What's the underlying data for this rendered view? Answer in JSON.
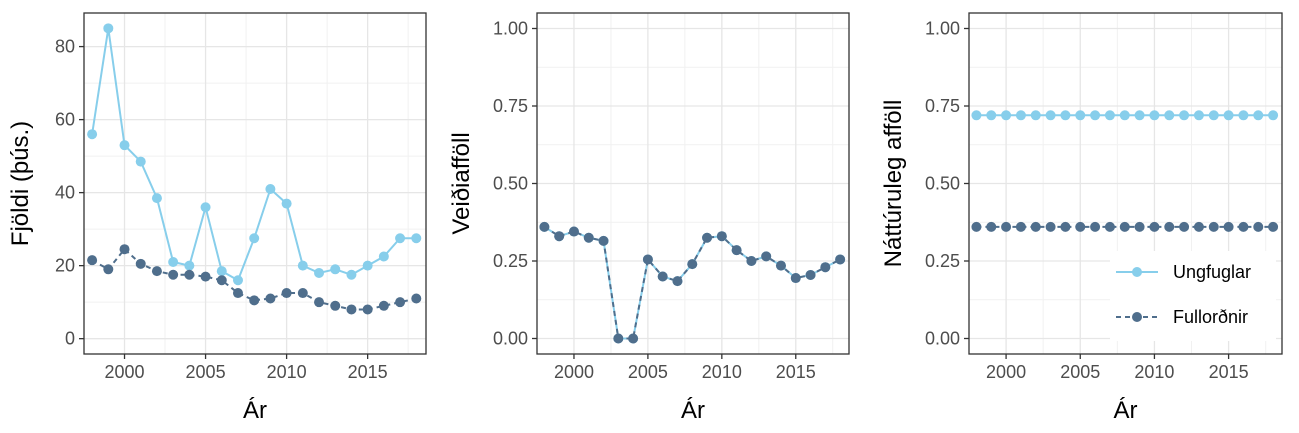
{
  "chart_data": [
    {
      "type": "line",
      "xlabel": "Ár",
      "ylabel": "Fjöldi (þús.)",
      "xlim": [
        1997.5,
        2018.6
      ],
      "ylim": [
        -4.2,
        89.2
      ],
      "x_ticks": [
        2000,
        2005,
        2010,
        2015
      ],
      "y_ticks": [
        0,
        20,
        40,
        60,
        80
      ],
      "y_tick_labels": [
        "0",
        "20",
        "40",
        "60",
        "80"
      ],
      "grid": true,
      "x": [
        1998,
        1999,
        2000,
        2001,
        2002,
        2003,
        2004,
        2005,
        2006,
        2007,
        2008,
        2009,
        2010,
        2011,
        2012,
        2013,
        2014,
        2015,
        2016,
        2017,
        2018
      ],
      "series": [
        {
          "name": "Ungfuglar",
          "color": "#87CEEB",
          "dashed": false,
          "values": [
            56,
            85,
            53,
            48.5,
            38.5,
            21,
            20,
            36,
            18.5,
            16,
            27.5,
            41,
            37,
            20,
            18,
            19,
            17.5,
            20,
            22.5,
            27.5,
            27.5
          ]
        },
        {
          "name": "Fullorðnir",
          "color": "#4F6E8C",
          "dashed": true,
          "values": [
            21.5,
            19,
            24.5,
            20.5,
            18.5,
            17.5,
            17.5,
            17,
            16,
            12.5,
            10.5,
            11,
            12.5,
            12.5,
            10,
            9,
            8,
            8,
            9,
            10,
            11
          ]
        }
      ]
    },
    {
      "type": "line",
      "xlabel": "Ár",
      "ylabel": "Veiðiafföll",
      "xlim": [
        1997.5,
        2018.6
      ],
      "ylim": [
        -0.05,
        1.05
      ],
      "x_ticks": [
        2000,
        2005,
        2010,
        2015
      ],
      "y_ticks": [
        0,
        0.25,
        0.5,
        0.75,
        1
      ],
      "y_tick_labels": [
        "0.00",
        "0.25",
        "0.50",
        "0.75",
        "1.00"
      ],
      "grid": true,
      "x": [
        1998,
        1999,
        2000,
        2001,
        2002,
        2003,
        2004,
        2005,
        2006,
        2007,
        2008,
        2009,
        2010,
        2011,
        2012,
        2013,
        2014,
        2015,
        2016,
        2017,
        2018
      ],
      "series": [
        {
          "name": "Ungfuglar",
          "color": "#87CEEB",
          "dashed": false,
          "values": [
            0.36,
            0.33,
            0.345,
            0.325,
            0.315,
            0,
            0,
            0.255,
            0.2,
            0.185,
            0.24,
            0.325,
            0.33,
            0.285,
            0.25,
            0.265,
            0.235,
            0.195,
            0.205,
            0.23,
            0.255
          ]
        },
        {
          "name": "Fullorðnir",
          "color": "#4F6E8C",
          "dashed": true,
          "values": [
            0.36,
            0.33,
            0.345,
            0.325,
            0.315,
            0,
            0,
            0.255,
            0.2,
            0.185,
            0.24,
            0.325,
            0.33,
            0.285,
            0.25,
            0.265,
            0.235,
            0.195,
            0.205,
            0.23,
            0.255
          ]
        }
      ]
    },
    {
      "type": "line",
      "xlabel": "Ár",
      "ylabel": "Náttúruleg afföll",
      "xlim": [
        1997.5,
        2018.6
      ],
      "ylim": [
        -0.05,
        1.05
      ],
      "x_ticks": [
        2000,
        2005,
        2010,
        2015
      ],
      "y_ticks": [
        0,
        0.25,
        0.5,
        0.75,
        1
      ],
      "y_tick_labels": [
        "0.00",
        "0.25",
        "0.50",
        "0.75",
        "1.00"
      ],
      "grid": true,
      "legend": "bottom-right",
      "x": [
        1998,
        1999,
        2000,
        2001,
        2002,
        2003,
        2004,
        2005,
        2006,
        2007,
        2008,
        2009,
        2010,
        2011,
        2012,
        2013,
        2014,
        2015,
        2016,
        2017,
        2018
      ],
      "series": [
        {
          "name": "Ungfuglar",
          "color": "#87CEEB",
          "dashed": false,
          "values": [
            0.72,
            0.72,
            0.72,
            0.72,
            0.72,
            0.72,
            0.72,
            0.72,
            0.72,
            0.72,
            0.72,
            0.72,
            0.72,
            0.72,
            0.72,
            0.72,
            0.72,
            0.72,
            0.72,
            0.72,
            0.72
          ]
        },
        {
          "name": "Fullorðnir",
          "color": "#4F6E8C",
          "dashed": true,
          "values": [
            0.36,
            0.36,
            0.36,
            0.36,
            0.36,
            0.36,
            0.36,
            0.36,
            0.36,
            0.36,
            0.36,
            0.36,
            0.36,
            0.36,
            0.36,
            0.36,
            0.36,
            0.36,
            0.36,
            0.36,
            0.36
          ]
        }
      ]
    }
  ]
}
